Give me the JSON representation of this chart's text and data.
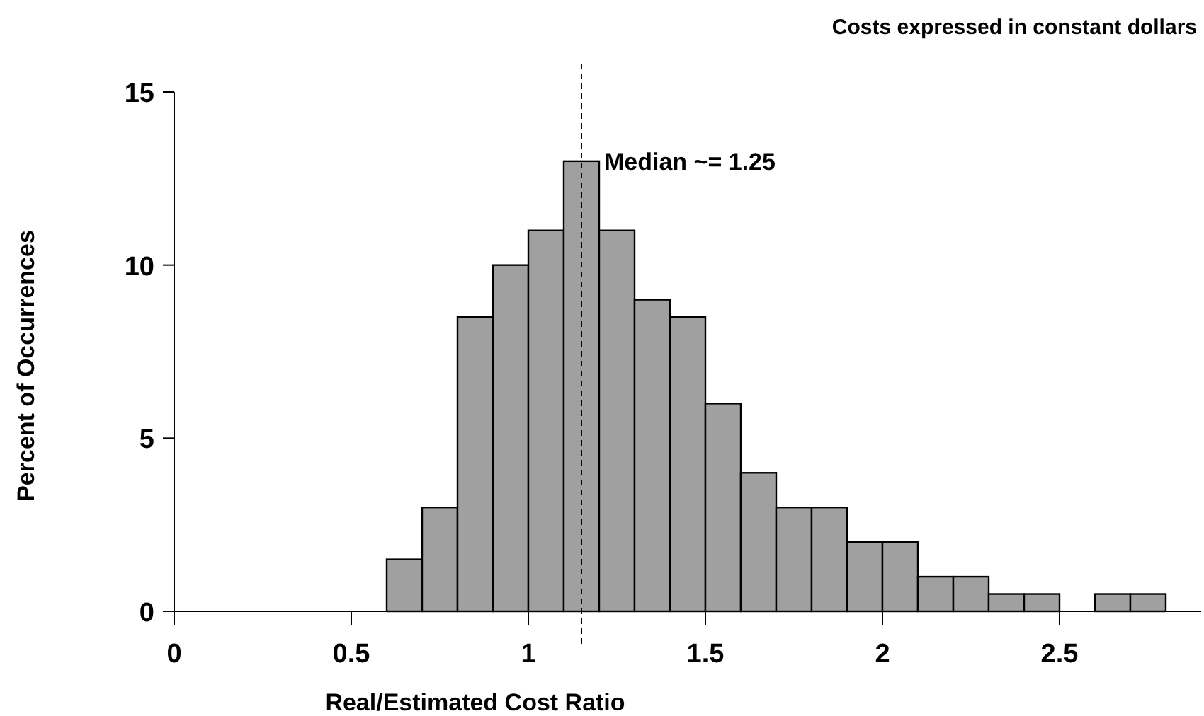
{
  "chart_data": {
    "type": "histogram",
    "title": "Costs expressed in constant dollars",
    "xlabel": "Real/Estimated Cost Ratio",
    "ylabel": "Percent of Occurrences",
    "bins": [
      0.6,
      0.7,
      0.8,
      0.9,
      1.0,
      1.1,
      1.2,
      1.3,
      1.4,
      1.5,
      1.6,
      1.7,
      1.8,
      1.9,
      2.0,
      2.1,
      2.2,
      2.3,
      2.4,
      2.5,
      2.6,
      2.7,
      2.8
    ],
    "values": [
      1.5,
      3,
      8.5,
      10,
      11,
      13,
      11,
      9,
      8.5,
      6,
      4,
      3,
      3,
      2,
      2,
      1,
      1,
      0.5,
      0.5,
      0,
      0.5,
      0.5
    ],
    "color": "#a0a0a0",
    "xlim": [
      0,
      2.9
    ],
    "xticks": [
      0,
      0.5,
      1,
      1.5,
      2,
      2.5
    ],
    "ylim": [
      0,
      15
    ],
    "yticks": [
      0,
      5,
      10,
      15
    ],
    "grid": false,
    "ref_lines": [
      {
        "axis": "x",
        "value": 1.15,
        "line_style": "dashed",
        "color": "#000000"
      }
    ],
    "annotations": [
      {
        "text": "Median ~= 1.25",
        "x": 1.15,
        "y": 13
      }
    ]
  }
}
